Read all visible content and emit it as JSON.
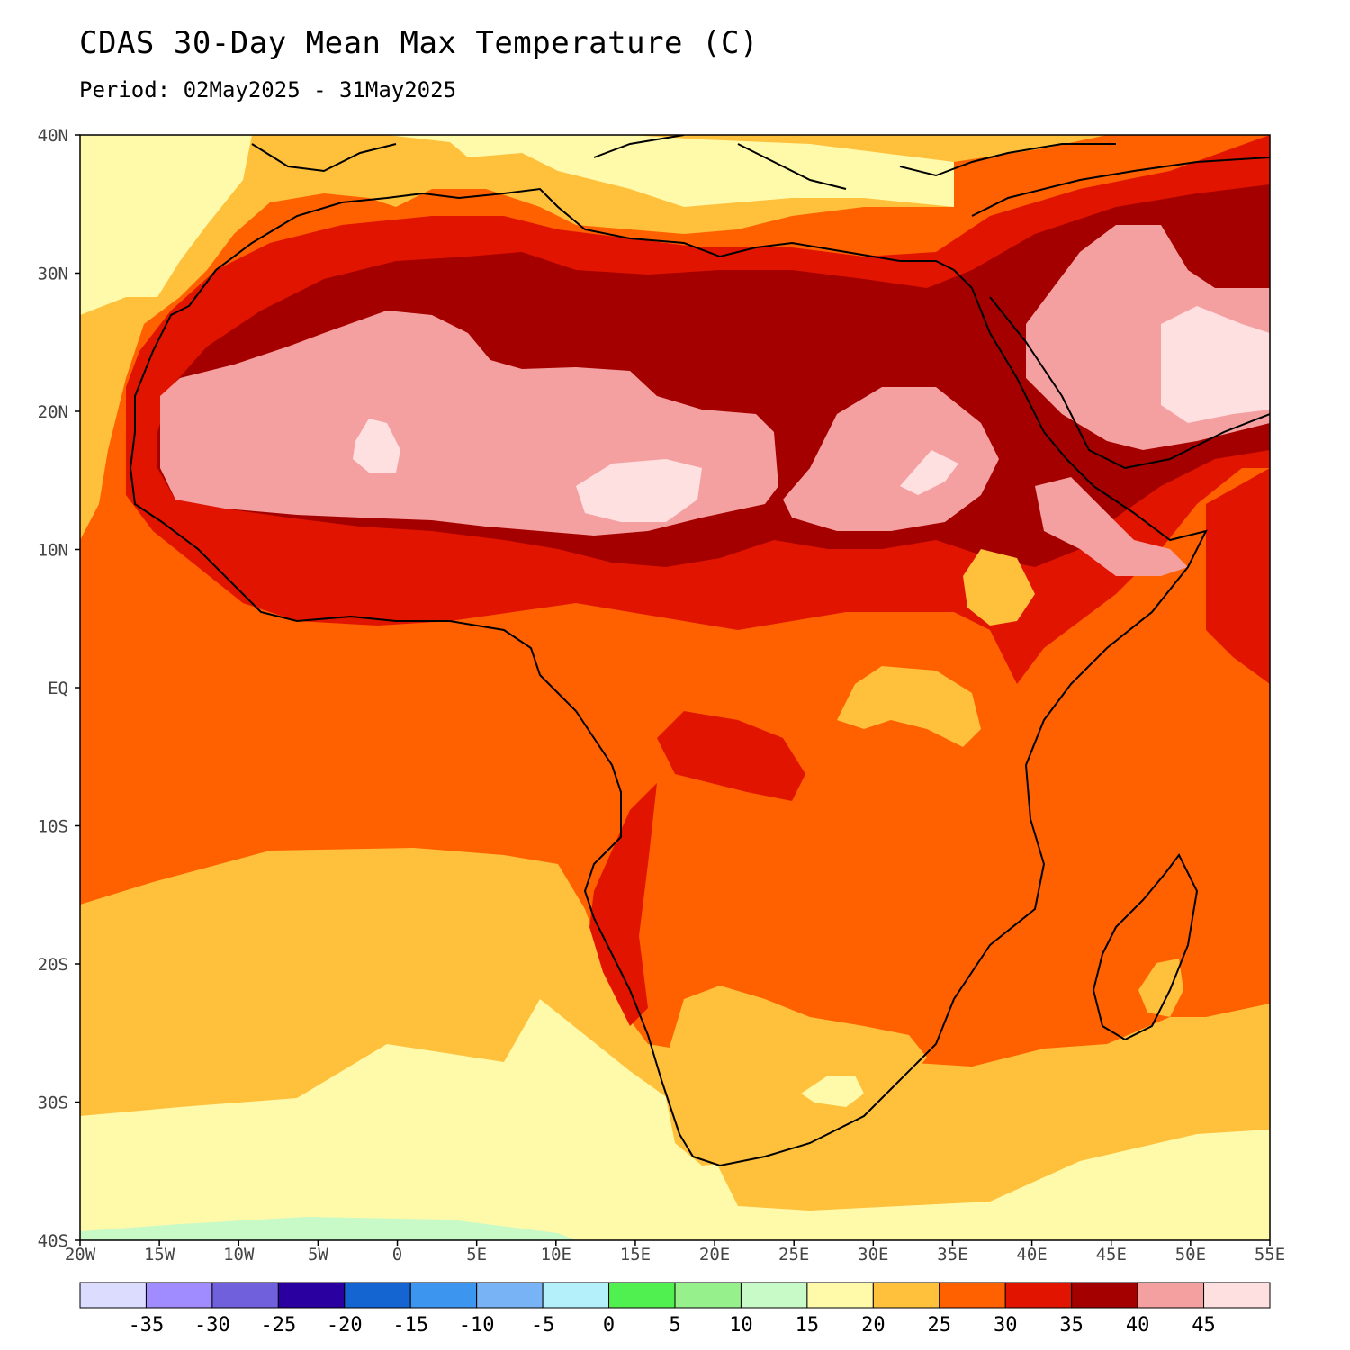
{
  "title": "CDAS 30-Day Mean Max Temperature (C)",
  "subtitle": "Period: 02May2025 - 31May2025",
  "lat_labels": [
    "40N",
    "30N",
    "20N",
    "10N",
    "EQ",
    "10S",
    "20S",
    "30S",
    "40S"
  ],
  "lon_labels": [
    "20W",
    "15W",
    "10W",
    "5W",
    "0",
    "5E",
    "10E",
    "15E",
    "20E",
    "25E",
    "30E",
    "35E",
    "40E",
    "45E",
    "50E",
    "55E"
  ],
  "legend": {
    "colors": [
      "#dcdcff",
      "#a08cff",
      "#7060dc",
      "#2a00a0",
      "#1464d2",
      "#3c96f0",
      "#78b4f5",
      "#b4f0fa",
      "#50f050",
      "#96f08c",
      "#c8fac8",
      "#fffaaa",
      "#ffc03c",
      "#ff6000",
      "#e11400",
      "#a50000",
      "#f5a0a0",
      "#ffe0e0"
    ],
    "labels": [
      "-35",
      "-30",
      "-25",
      "-20",
      "-15",
      "-10",
      "-5",
      "0",
      "5",
      "10",
      "15",
      "20",
      "25",
      "30",
      "35",
      "40",
      "45"
    ]
  },
  "colors": {
    "t15": "#c8fac8",
    "t20": "#fffaaa",
    "t25": "#ffc03c",
    "t30": "#ff6000",
    "t35": "#e11400",
    "t40": "#a50000",
    "t45": "#f5a0a0",
    "t50": "#ffe0e0"
  }
}
